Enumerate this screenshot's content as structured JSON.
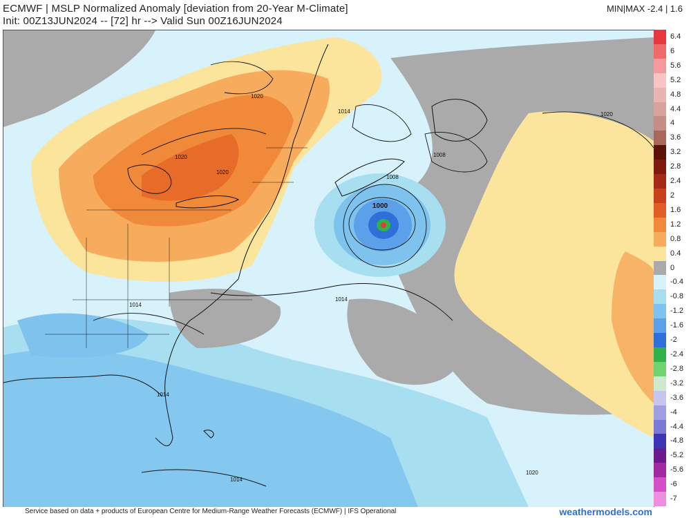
{
  "header": {
    "title_line1": "ECMWF | MSLP Normalized Anomaly [deviation from 20-Year M-Climate]",
    "title_line2": "Init: 00Z13JUN2024 -- [72] hr --> Valid Sun 00Z16JUN2024",
    "minmax": "MIN|MAX  -2.4 | 1.6"
  },
  "map": {
    "contour_labels": [
      "1020",
      "1020",
      "1020",
      "1014",
      "1008",
      "1008",
      "1000",
      "1014",
      "1014",
      "1014",
      "1014",
      "1020"
    ]
  },
  "legend": {
    "labels": [
      "6.4",
      "6",
      "5.6",
      "5.2",
      "4.8",
      "4.4",
      "4",
      "3.6",
      "3.2",
      "2.8",
      "2.4",
      "2",
      "1.6",
      "1.2",
      "0.8",
      "0.4",
      "0",
      "-0.4",
      "-0.8",
      "-1.2",
      "-1.6",
      "-2",
      "-2.4",
      "-2.8",
      "-3.2",
      "-3.6",
      "-4",
      "-4.4",
      "-4.8",
      "-5.2",
      "-5.6",
      "-6",
      "-7"
    ],
    "colors": [
      "#e8383d",
      "#f06a6a",
      "#f39a9a",
      "#f7c3c3",
      "#e9b5b0",
      "#d8a39b",
      "#c58e84",
      "#a8695c",
      "#5c1208",
      "#801a0f",
      "#a52a16",
      "#c9401d",
      "#e35e22",
      "#f1893a",
      "#f7ac5d",
      "#fbe49b",
      "#aaaaaa",
      "#d8f2fb",
      "#a7dff0",
      "#7ec3ee",
      "#5ba0e8",
      "#2f6fd9",
      "#2fb24a",
      "#6fd36f",
      "#cfe9cf",
      "#c5c5ef",
      "#9f9fe4",
      "#7a79d4",
      "#3d35b3",
      "#6c1b8c",
      "#a12aa3",
      "#d44ec6",
      "#ef8ee0"
    ]
  },
  "footer": {
    "credit": "Service based on data + products of European Centre for Medium-Range Weather Forecasts (ECMWF) | IFS Operational",
    "brand": "weathermodels.com"
  }
}
